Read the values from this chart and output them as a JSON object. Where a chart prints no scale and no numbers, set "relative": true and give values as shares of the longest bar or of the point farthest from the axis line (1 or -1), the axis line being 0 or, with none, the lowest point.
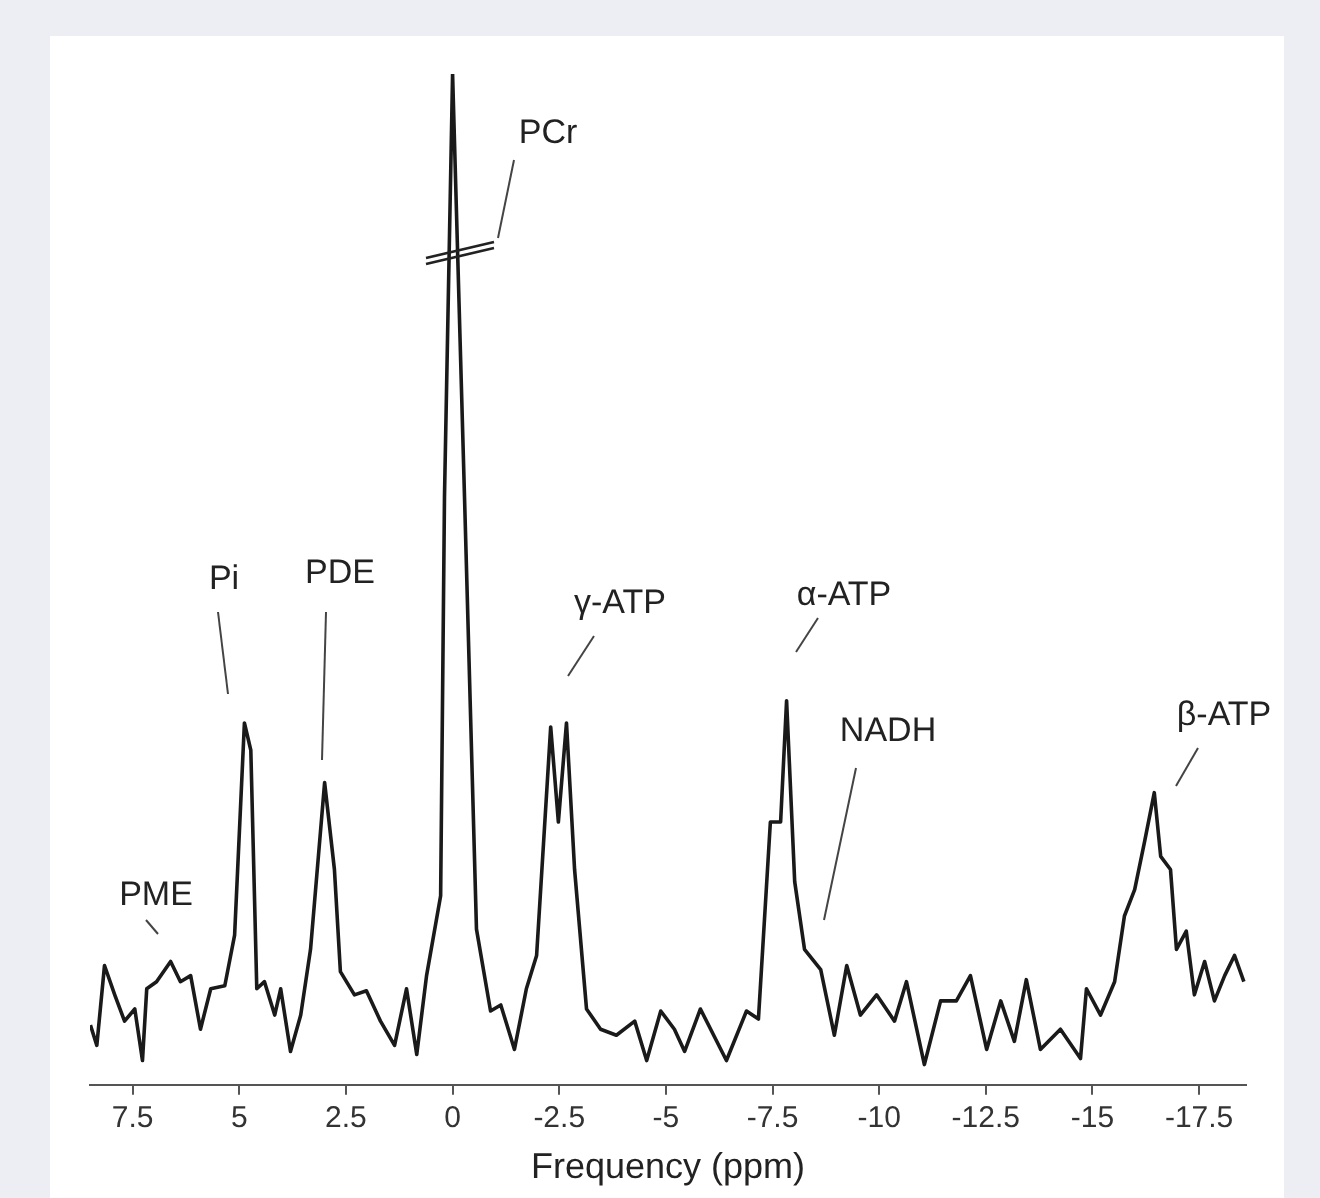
{
  "chart_data": {
    "type": "line",
    "relative": true,
    "xlabel": "Frequency (ppm)",
    "xlim": [
      8.5,
      -18.6
    ],
    "xticks": [
      7.5,
      5,
      2.5,
      0,
      -2.5,
      -5,
      -7.5,
      -10,
      -12.5,
      -15,
      -17.5
    ],
    "grid": false,
    "legend": false,
    "marker": "none",
    "line_style": "solid",
    "series": [
      {
        "color": "#1a1a1a",
        "x": [
          8.49,
          8.34,
          8.16,
          7.92,
          7.69,
          7.45,
          7.27,
          7.17,
          6.94,
          6.61,
          6.38,
          6.14,
          5.91,
          5.67,
          5.34,
          5.11,
          4.88,
          4.73,
          4.59,
          4.41,
          4.17,
          4.03,
          3.8,
          3.56,
          3.33,
          3.0,
          2.77,
          2.63,
          2.3,
          2.02,
          1.69,
          1.36,
          1.08,
          0.84,
          0.61,
          0.28,
          0.19,
          0,
          -0.28,
          -0.56,
          -0.89,
          -1.13,
          -1.45,
          -1.73,
          -1.97,
          -2.3,
          -2.48,
          -2.67,
          -2.86,
          -3.14,
          -3.47,
          -3.84,
          -4.27,
          -4.55,
          -4.88,
          -5.2,
          -5.44,
          -5.81,
          -6.42,
          -6.89,
          -7.17,
          -7.45,
          -7.69,
          -7.83,
          -8.02,
          -8.25,
          -8.63,
          -8.95,
          -9.24,
          -9.56,
          -9.94,
          -10.36,
          -10.64,
          -11.06,
          -11.44,
          -11.81,
          -12.14,
          -12.52,
          -12.85,
          -13.17,
          -13.45,
          -13.78,
          -14.25,
          -14.72,
          -14.86,
          -15.19,
          -15.52,
          -15.75,
          -15.99,
          -16.22,
          -16.45,
          -16.6,
          -16.83,
          -16.97,
          -17.2,
          -17.39,
          -17.63,
          -17.86,
          -18.1,
          -18.33,
          -18.55
        ],
        "values": [
          0.059,
          0.039,
          0.118,
          0.089,
          0.063,
          0.075,
          0.024,
          0.095,
          0.102,
          0.122,
          0.102,
          0.108,
          0.055,
          0.095,
          0.098,
          0.148,
          0.358,
          0.331,
          0.095,
          0.102,
          0.069,
          0.095,
          0.033,
          0.069,
          0.134,
          0.299,
          0.213,
          0.112,
          0.089,
          0.093,
          0.063,
          0.039,
          0.095,
          0.03,
          0.108,
          0.187,
          0.581,
          1,
          0.581,
          0.154,
          0.073,
          0.079,
          0.035,
          0.095,
          0.128,
          0.354,
          0.26,
          0.358,
          0.213,
          0.075,
          0.055,
          0.049,
          0.063,
          0.024,
          0.073,
          0.055,
          0.033,
          0.075,
          0.024,
          0.073,
          0.065,
          0.26,
          0.26,
          0.38,
          0.201,
          0.134,
          0.114,
          0.049,
          0.118,
          0.069,
          0.089,
          0.063,
          0.102,
          0.02,
          0.083,
          0.083,
          0.108,
          0.035,
          0.083,
          0.043,
          0.104,
          0.035,
          0.055,
          0.026,
          0.095,
          0.069,
          0.102,
          0.167,
          0.193,
          0.24,
          0.289,
          0.226,
          0.213,
          0.134,
          0.152,
          0.089,
          0.122,
          0.083,
          0.108,
          0.128,
          0.102
        ]
      }
    ],
    "annotations": [
      "PCr",
      "Pi",
      "PDE",
      "γ-ATP",
      "α-ATP",
      "NADH",
      "β-ATP",
      "PME"
    ]
  }
}
